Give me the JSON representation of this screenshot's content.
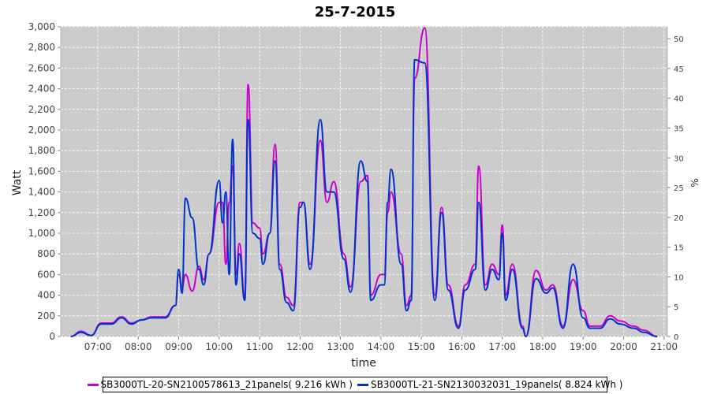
{
  "chart_data": {
    "type": "line",
    "title": "25-7-2015",
    "xlabel": "time",
    "ylabel_left": "Watt",
    "ylabel_right": "%",
    "x_ticks": [
      "07:00",
      "08:00",
      "09:00",
      "10:00",
      "11:00",
      "12:00",
      "13:00",
      "14:00",
      "15:00",
      "16:00",
      "17:00",
      "18:00",
      "19:00",
      "20:00",
      "21:00"
    ],
    "xlim": [
      "06:05",
      "21:05"
    ],
    "ylim": [
      0,
      3000
    ],
    "y_ticks": [
      "0",
      "200",
      "400",
      "600",
      "800",
      "1,000",
      "1,200",
      "1,400",
      "1,600",
      "1,800",
      "2,000",
      "2,200",
      "2,400",
      "2,600",
      "2,800",
      "3,000"
    ],
    "y2lim": [
      0,
      52
    ],
    "y2_ticks": [
      "0",
      "5",
      "10",
      "15",
      "20",
      "25",
      "30",
      "35",
      "40",
      "45",
      "50"
    ],
    "grid": true,
    "legend_position": "bottom",
    "series": [
      {
        "name": "SB3000TL-20-SN2100578613_21panels( 9.216 kWh )",
        "color": "#cc00cc",
        "points": [
          [
            "06:20",
            0
          ],
          [
            "06:35",
            50
          ],
          [
            "06:50",
            10
          ],
          [
            "07:05",
            130
          ],
          [
            "07:20",
            130
          ],
          [
            "07:35",
            190
          ],
          [
            "07:50",
            130
          ],
          [
            "08:05",
            160
          ],
          [
            "08:20",
            190
          ],
          [
            "08:40",
            190
          ],
          [
            "08:55",
            300
          ],
          [
            "09:00",
            600
          ],
          [
            "09:05",
            480
          ],
          [
            "09:10",
            600
          ],
          [
            "09:20",
            440
          ],
          [
            "09:30",
            680
          ],
          [
            "09:37",
            550
          ],
          [
            "09:45",
            800
          ],
          [
            "10:00",
            1300
          ],
          [
            "10:05",
            1300
          ],
          [
            "10:10",
            700
          ],
          [
            "10:15",
            1300
          ],
          [
            "10:20",
            1650
          ],
          [
            "10:25",
            600
          ],
          [
            "10:30",
            900
          ],
          [
            "10:38",
            380
          ],
          [
            "10:43",
            2440
          ],
          [
            "10:50",
            1100
          ],
          [
            "11:00",
            1050
          ],
          [
            "11:05",
            800
          ],
          [
            "11:15",
            1000
          ],
          [
            "11:23",
            1860
          ],
          [
            "11:30",
            700
          ],
          [
            "11:40",
            380
          ],
          [
            "11:50",
            300
          ],
          [
            "12:00",
            1300
          ],
          [
            "12:05",
            1300
          ],
          [
            "12:15",
            700
          ],
          [
            "12:30",
            1900
          ],
          [
            "12:40",
            1300
          ],
          [
            "12:50",
            1500
          ],
          [
            "13:05",
            800
          ],
          [
            "13:15",
            480
          ],
          [
            "13:30",
            1500
          ],
          [
            "13:40",
            1560
          ],
          [
            "13:45",
            400
          ],
          [
            "14:00",
            600
          ],
          [
            "14:05",
            600
          ],
          [
            "14:10",
            1200
          ],
          [
            "14:15",
            1400
          ],
          [
            "14:30",
            800
          ],
          [
            "14:38",
            300
          ],
          [
            "14:45",
            400
          ],
          [
            "14:50",
            2500
          ],
          [
            "15:05",
            2990
          ],
          [
            "15:20",
            400
          ],
          [
            "15:30",
            1250
          ],
          [
            "15:40",
            500
          ],
          [
            "15:55",
            100
          ],
          [
            "16:05",
            500
          ],
          [
            "16:20",
            700
          ],
          [
            "16:25",
            1650
          ],
          [
            "16:35",
            500
          ],
          [
            "16:45",
            700
          ],
          [
            "16:55",
            600
          ],
          [
            "17:00",
            1080
          ],
          [
            "17:05",
            400
          ],
          [
            "17:15",
            700
          ],
          [
            "17:30",
            100
          ],
          [
            "17:35",
            0
          ],
          [
            "17:50",
            640
          ],
          [
            "18:05",
            450
          ],
          [
            "18:15",
            500
          ],
          [
            "18:30",
            100
          ],
          [
            "18:45",
            550
          ],
          [
            "19:00",
            250
          ],
          [
            "19:10",
            100
          ],
          [
            "19:25",
            100
          ],
          [
            "19:40",
            200
          ],
          [
            "19:55",
            150
          ],
          [
            "20:15",
            100
          ],
          [
            "20:30",
            60
          ],
          [
            "20:50",
            0
          ]
        ]
      },
      {
        "name": "SB3000TL-21-SN2130032031_19panels( 8.824 kWh )",
        "color": "#0033cc",
        "points": [
          [
            "06:20",
            0
          ],
          [
            "06:35",
            40
          ],
          [
            "06:50",
            10
          ],
          [
            "07:05",
            120
          ],
          [
            "07:20",
            120
          ],
          [
            "07:35",
            180
          ],
          [
            "07:50",
            120
          ],
          [
            "08:05",
            160
          ],
          [
            "08:20",
            180
          ],
          [
            "08:40",
            180
          ],
          [
            "08:55",
            300
          ],
          [
            "09:00",
            650
          ],
          [
            "09:05",
            420
          ],
          [
            "09:10",
            1340
          ],
          [
            "09:20",
            1150
          ],
          [
            "09:30",
            650
          ],
          [
            "09:37",
            500
          ],
          [
            "09:45",
            800
          ],
          [
            "10:00",
            1510
          ],
          [
            "10:05",
            1100
          ],
          [
            "10:10",
            1400
          ],
          [
            "10:15",
            600
          ],
          [
            "10:20",
            1910
          ],
          [
            "10:25",
            500
          ],
          [
            "10:30",
            800
          ],
          [
            "10:38",
            350
          ],
          [
            "10:43",
            2100
          ],
          [
            "10:50",
            1000
          ],
          [
            "11:00",
            950
          ],
          [
            "11:05",
            700
          ],
          [
            "11:15",
            1000
          ],
          [
            "11:23",
            1700
          ],
          [
            "11:30",
            650
          ],
          [
            "11:40",
            330
          ],
          [
            "11:50",
            250
          ],
          [
            "12:00",
            1250
          ],
          [
            "12:05",
            1300
          ],
          [
            "12:15",
            650
          ],
          [
            "12:30",
            2100
          ],
          [
            "12:40",
            1400
          ],
          [
            "12:50",
            1400
          ],
          [
            "13:05",
            750
          ],
          [
            "13:15",
            430
          ],
          [
            "13:30",
            1700
          ],
          [
            "13:40",
            1500
          ],
          [
            "13:45",
            350
          ],
          [
            "14:00",
            500
          ],
          [
            "14:05",
            500
          ],
          [
            "14:10",
            1300
          ],
          [
            "14:15",
            1620
          ],
          [
            "14:30",
            700
          ],
          [
            "14:38",
            250
          ],
          [
            "14:45",
            350
          ],
          [
            "14:50",
            2680
          ],
          [
            "15:05",
            2650
          ],
          [
            "15:20",
            350
          ],
          [
            "15:30",
            1200
          ],
          [
            "15:40",
            450
          ],
          [
            "15:55",
            80
          ],
          [
            "16:05",
            450
          ],
          [
            "16:20",
            650
          ],
          [
            "16:25",
            1300
          ],
          [
            "16:35",
            450
          ],
          [
            "16:45",
            650
          ],
          [
            "16:55",
            550
          ],
          [
            "17:00",
            1000
          ],
          [
            "17:05",
            350
          ],
          [
            "17:15",
            650
          ],
          [
            "17:30",
            80
          ],
          [
            "17:35",
            0
          ],
          [
            "17:50",
            560
          ],
          [
            "18:05",
            420
          ],
          [
            "18:15",
            470
          ],
          [
            "18:30",
            80
          ],
          [
            "18:45",
            700
          ],
          [
            "19:00",
            180
          ],
          [
            "19:10",
            80
          ],
          [
            "19:25",
            80
          ],
          [
            "19:40",
            170
          ],
          [
            "19:55",
            120
          ],
          [
            "20:15",
            80
          ],
          [
            "20:30",
            40
          ],
          [
            "20:50",
            0
          ]
        ]
      }
    ]
  }
}
